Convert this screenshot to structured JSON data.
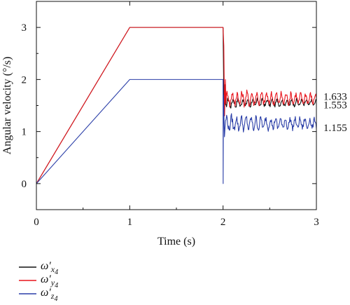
{
  "chart_data": {
    "type": "line",
    "xlabel": "Time (s)",
    "ylabel": "Angular velocity (°/s)",
    "xlim": [
      0,
      3
    ],
    "ylim": [
      -0.5,
      3.5
    ],
    "x_ticks": [
      "0",
      "1",
      "2",
      "3"
    ],
    "y_ticks": [
      "0",
      "1",
      "2",
      "3"
    ],
    "grid": false,
    "legend_placement": "below-left",
    "right_annotations": [
      "1.633",
      "1.553",
      "1.155"
    ],
    "right_annotation_values": [
      1.633,
      1.553,
      1.155
    ],
    "series": [
      {
        "name": "ω′x4",
        "legend_base": "ω′",
        "legend_sub": "x",
        "legend_subsub": "4",
        "color": "#111111",
        "ramp": [
          [
            0,
            0
          ],
          [
            1,
            3
          ],
          [
            2,
            3
          ]
        ],
        "transient": [
          [
            2.0,
            3.0
          ],
          [
            2.01,
            1.3
          ],
          [
            2.02,
            1.9
          ]
        ],
        "steady_mean": 1.553,
        "osc_amplitude": 0.1
      },
      {
        "name": "ω′y4",
        "legend_base": "ω′",
        "legend_sub": "y",
        "legend_subsub": "4",
        "color": "#e8141c",
        "ramp": [
          [
            0,
            0
          ],
          [
            1,
            3
          ],
          [
            2,
            3
          ]
        ],
        "transient": [
          [
            2.0,
            3.0
          ],
          [
            2.008,
            2.65
          ],
          [
            2.016,
            1.3
          ],
          [
            2.025,
            2.0
          ]
        ],
        "steady_mean": 1.633,
        "osc_amplitude": 0.17
      },
      {
        "name": "ω′z4",
        "legend_base": "ω′",
        "legend_sub": "z",
        "legend_subsub": "4",
        "color": "#2b3fa8",
        "ramp": [
          [
            0,
            0
          ],
          [
            1,
            2
          ],
          [
            2,
            2
          ]
        ],
        "transient": [
          [
            2.0,
            2.0
          ],
          [
            2.001,
            0.0
          ],
          [
            2.004,
            1.7
          ],
          [
            2.015,
            0.9
          ]
        ],
        "steady_mean": 1.155,
        "osc_amplitude": 0.17
      }
    ]
  }
}
